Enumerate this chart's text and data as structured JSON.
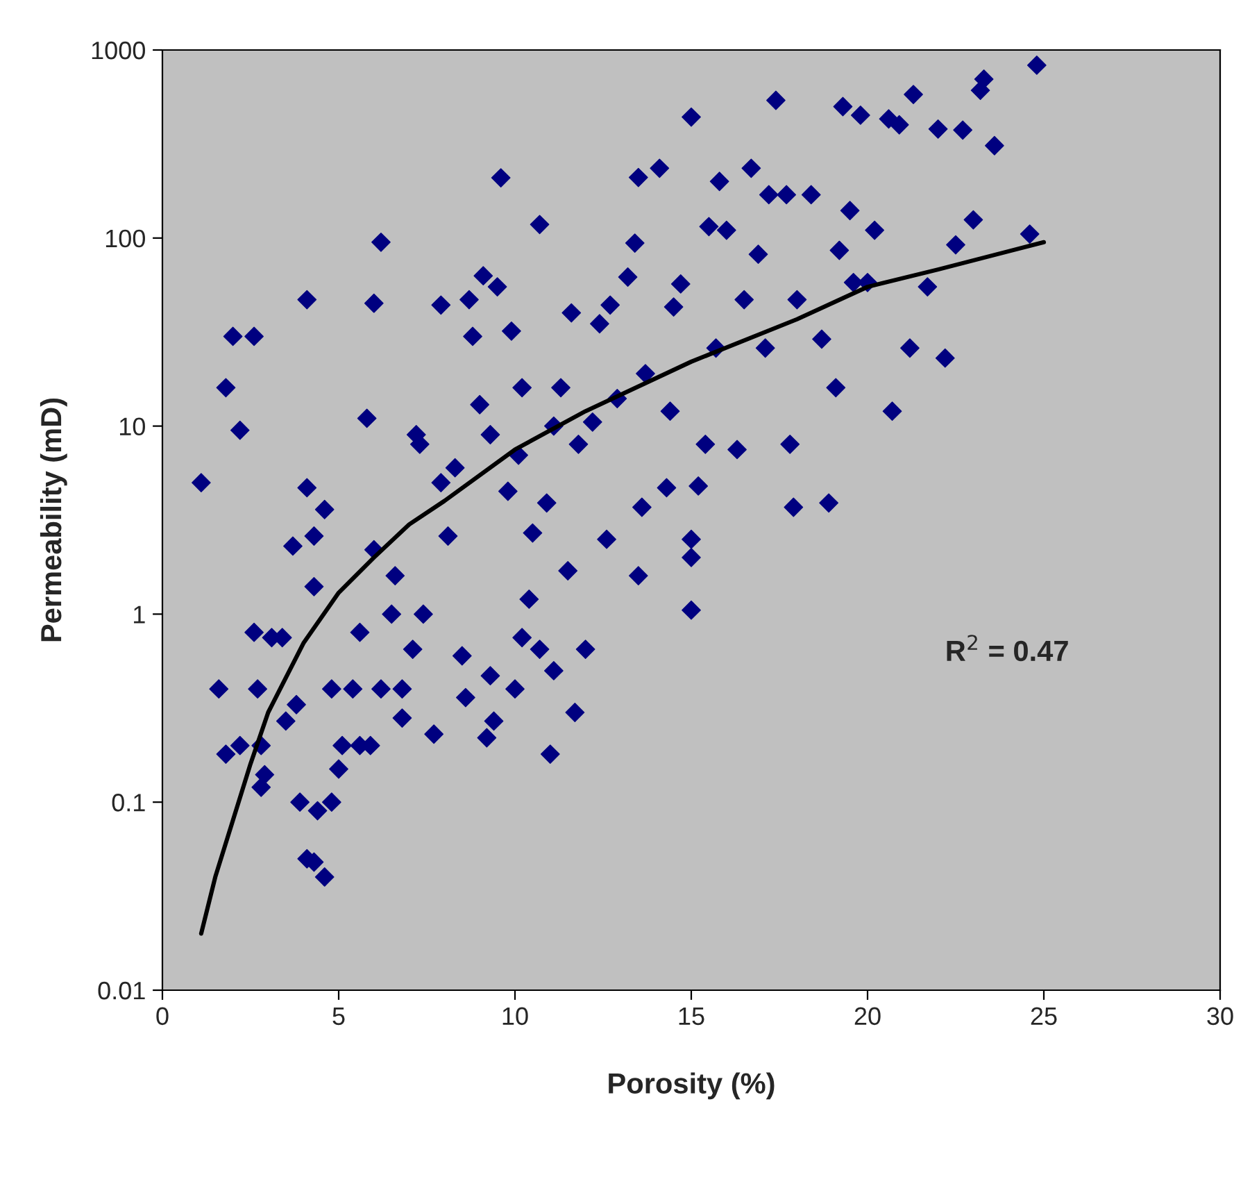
{
  "chart_data": {
    "type": "scatter",
    "xlabel": "Porosity (%)",
    "ylabel": "Permeability (mD)",
    "log": "y",
    "xlim": [
      0,
      30
    ],
    "xticks": [
      0,
      5,
      10,
      15,
      20,
      25,
      30
    ],
    "ylim": [
      0.01,
      1000
    ],
    "yticks": [
      0.01,
      0.1,
      1,
      10,
      100,
      1000
    ],
    "grid": false,
    "legend": false,
    "marker": "diamond",
    "annotations": [
      "R$^{2}$ = 0.47"
    ],
    "series": [
      {
        "color": "#000080",
        "x": [
          1.1,
          1.6,
          1.8,
          1.8,
          2.0,
          2.2,
          2.2,
          2.6,
          2.6,
          2.7,
          2.8,
          2.8,
          2.9,
          3.1,
          3.4,
          3.5,
          3.7,
          3.8,
          3.9,
          4.1,
          4.1,
          4.1,
          4.3,
          4.3,
          4.3,
          4.4,
          4.6,
          4.6,
          4.8,
          4.8,
          5.0,
          5.1,
          5.4,
          5.6,
          5.6,
          5.8,
          5.9,
          6.0,
          6.2,
          6.0,
          6.2,
          6.5,
          6.6,
          6.8,
          6.8,
          7.1,
          7.2,
          7.3,
          7.4,
          7.7,
          7.9,
          7.9,
          8.1,
          8.3,
          8.5,
          8.6,
          8.7,
          8.8,
          9.0,
          9.1,
          9.2,
          9.3,
          9.3,
          9.4,
          9.5,
          9.6,
          9.8,
          9.9,
          10.0,
          10.1,
          10.2,
          10.2,
          10.4,
          10.5,
          10.7,
          10.7,
          10.9,
          11.0,
          11.1,
          11.1,
          11.3,
          11.5,
          11.6,
          11.7,
          11.8,
          12.0,
          12.2,
          12.4,
          12.6,
          12.7,
          12.9,
          13.2,
          13.4,
          13.5,
          13.5,
          13.6,
          13.7,
          14.1,
          14.3,
          14.4,
          14.5,
          14.7,
          15.0,
          15.0,
          15.0,
          15.0,
          15.2,
          15.4,
          15.5,
          15.7,
          15.8,
          16.0,
          16.3,
          16.5,
          16.7,
          16.9,
          17.1,
          17.2,
          17.4,
          17.7,
          17.8,
          17.9,
          18.0,
          18.4,
          18.7,
          18.9,
          19.1,
          19.2,
          19.3,
          19.5,
          19.6,
          19.8,
          20.0,
          20.2,
          20.6,
          20.7,
          20.9,
          21.2,
          21.3,
          21.7,
          22.0,
          22.2,
          22.5,
          22.7,
          23.0,
          23.2,
          23.3,
          23.6,
          24.6,
          24.8
        ],
        "values": [
          5.0,
          0.4,
          0.18,
          16,
          30,
          9.5,
          0.2,
          30,
          0.8,
          0.4,
          0.2,
          0.12,
          0.14,
          0.75,
          0.75,
          0.27,
          2.3,
          0.33,
          0.1,
          0.05,
          4.7,
          47,
          2.6,
          0.048,
          1.4,
          0.09,
          3.6,
          0.04,
          0.4,
          0.1,
          0.15,
          0.2,
          0.4,
          0.8,
          0.2,
          11,
          0.2,
          45,
          95,
          2.2,
          0.4,
          1.0,
          1.6,
          0.4,
          0.28,
          0.65,
          9,
          8,
          1.0,
          0.23,
          44,
          5,
          2.6,
          6,
          0.6,
          0.36,
          47,
          30,
          13,
          63,
          0.22,
          0.47,
          9,
          0.27,
          55,
          209,
          4.5,
          32,
          0.4,
          7,
          16,
          0.75,
          1.2,
          2.7,
          118,
          0.65,
          3.9,
          0.18,
          0.5,
          10,
          16,
          1.7,
          40,
          0.3,
          8,
          0.65,
          10.5,
          35,
          2.5,
          44,
          14,
          62,
          94,
          1.6,
          210,
          3.7,
          19,
          235,
          4.7,
          12,
          43,
          57,
          440,
          1.05,
          2.5,
          2.0,
          4.8,
          8,
          115,
          26,
          200,
          110,
          7.5,
          47,
          235,
          82,
          26,
          170,
          540,
          170,
          8,
          3.7,
          47,
          170,
          29,
          3.9,
          16,
          86,
          500,
          140,
          58,
          450,
          58,
          110,
          430,
          12,
          400,
          26,
          580,
          55,
          380,
          23,
          92,
          375,
          125,
          610,
          700,
          310,
          105,
          830
        ]
      },
      {
        "type": "line",
        "color": "#000000",
        "marker": "none",
        "x": [
          1.1,
          1.5,
          2.0,
          2.5,
          3.0,
          4.0,
          5.0,
          6.0,
          7.0,
          8.0,
          10.0,
          12.0,
          15.0,
          18.0,
          20.0,
          22.0,
          24.0,
          25.0
        ],
        "values": [
          0.02,
          0.04,
          0.08,
          0.16,
          0.3,
          0.7,
          1.3,
          2.0,
          3.0,
          4.0,
          7.5,
          12,
          22,
          37,
          55,
          68,
          85,
          95
        ]
      }
    ]
  }
}
